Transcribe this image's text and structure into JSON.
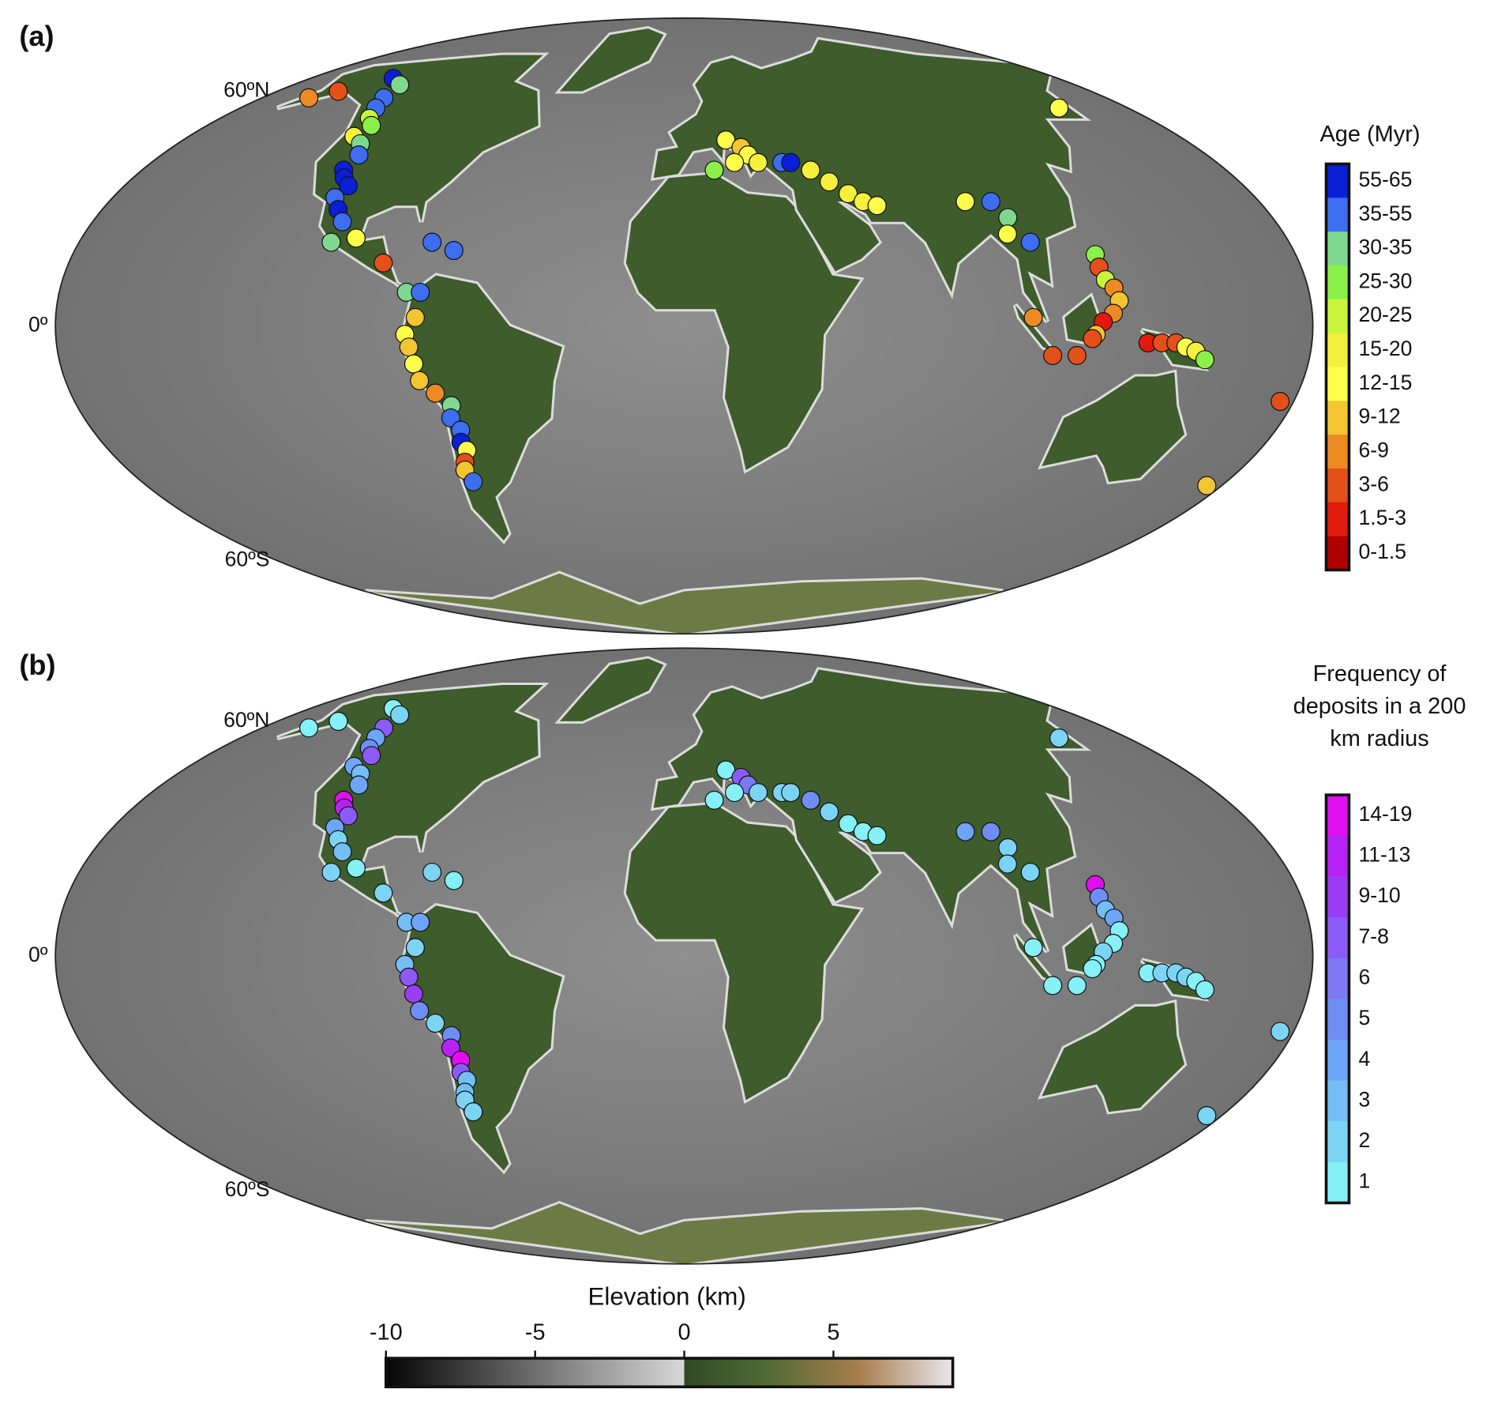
{
  "chart_data": [
    {
      "type": "map",
      "panel_label": "(a)",
      "lat_labels": [
        "60ºN",
        "0º",
        "60ºS"
      ],
      "legend_title": "Age (Myr)",
      "classes": [
        "55-65",
        "35-55",
        "30-35",
        "25-30",
        "20-25",
        "15-20",
        "12-15",
        "9-12",
        "6-9",
        "3-6",
        "1.5-3",
        "0-1.5"
      ],
      "class_colors": [
        "#0a1fd6",
        "#3d6ef0",
        "#7fd88f",
        "#8cf04a",
        "#c8f53a",
        "#f5f03a",
        "#ffff4a",
        "#f2c531",
        "#ee8a22",
        "#e4501a",
        "#e01a0c",
        "#b00000"
      ],
      "points": {
        "lon": [
          -160,
          -153,
          -140,
          -131,
          -128,
          -125,
          -122,
          -118,
          -120,
          -115,
          -112,
          -113,
          -111,
          -108,
          -110,
          -107,
          -104,
          -105,
          -98,
          -88,
          -75,
          -68,
          -80,
          -76,
          -77,
          -80,
          -79,
          -78,
          -77,
          -73,
          -69,
          -70,
          -68,
          -69,
          -68,
          -70,
          -71,
          -70,
          15,
          20,
          22,
          17,
          10,
          25,
          33,
          36,
          42,
          47,
          52,
          56,
          60,
          88,
          96,
          99,
          97,
          103,
          152,
          121,
          121,
          122,
          124,
          125,
          123,
          120,
          118,
          117,
          100,
          106,
          113,
          133,
          137,
          141,
          144,
          147,
          150,
          176,
          175
        ],
        "lat": [
          58,
          60,
          64,
          62,
          58,
          55,
          52,
          50,
          47,
          45,
          42,
          38,
          36,
          34,
          31,
          28,
          25,
          20,
          21,
          15,
          20,
          18,
          8,
          8,
          2,
          -2,
          -5,
          -9,
          -13,
          -16,
          -19,
          -22,
          -25,
          -28,
          -30,
          -33,
          -35,
          -38,
          46,
          44,
          42,
          40,
          38,
          40,
          40,
          40,
          38,
          35,
          32,
          30,
          29,
          30,
          30,
          26,
          22,
          20,
          55,
          17,
          14,
          11,
          9,
          6,
          3,
          1,
          -2,
          -3,
          2,
          -7,
          -7,
          -4,
          -4,
          -4,
          -5,
          -6,
          -8,
          -18,
          -39
        ],
        "class": [
          8,
          9,
          0,
          2,
          1,
          1,
          4,
          3,
          5,
          2,
          1,
          0,
          0,
          0,
          1,
          0,
          1,
          2,
          6,
          9,
          1,
          1,
          2,
          1,
          7,
          6,
          7,
          6,
          7,
          8,
          2,
          1,
          1,
          0,
          6,
          9,
          7,
          1,
          6,
          7,
          6,
          6,
          3,
          5,
          1,
          0,
          5,
          5,
          5,
          5,
          6,
          6,
          1,
          2,
          6,
          1,
          6,
          3,
          9,
          4,
          8,
          7,
          8,
          10,
          7,
          9,
          8,
          9,
          9,
          10,
          9,
          9,
          6,
          5,
          3,
          9,
          7
        ]
      }
    },
    {
      "type": "map",
      "panel_label": "(b)",
      "lat_labels": [
        "60ºN",
        "0º",
        "60ºS"
      ],
      "legend_title": [
        "Frequency of",
        "deposits in a 200",
        "km radius"
      ],
      "classes": [
        "14-19",
        "11-13",
        "9-10",
        "7-8",
        "6",
        "5",
        "4",
        "3",
        "2",
        "1"
      ],
      "class_colors": [
        "#e20ef0",
        "#b622f5",
        "#9b3cf5",
        "#8c5af5",
        "#7c78f2",
        "#6f8ef3",
        "#6ea5f7",
        "#74bdf5",
        "#7cd4f5",
        "#85f0f5"
      ],
      "points": {
        "lon": [
          -160,
          -153,
          -140,
          -131,
          -128,
          -125,
          -122,
          -118,
          -120,
          -115,
          -112,
          -113,
          -111,
          -108,
          -110,
          -107,
          -104,
          -105,
          -98,
          -88,
          -75,
          -68,
          -80,
          -76,
          -77,
          -80,
          -79,
          -78,
          -77,
          -73,
          -69,
          -70,
          -68,
          -69,
          -68,
          -70,
          -71,
          -70,
          15,
          20,
          22,
          17,
          10,
          25,
          33,
          36,
          42,
          47,
          52,
          56,
          60,
          88,
          96,
          99,
          97,
          103,
          152,
          121,
          121,
          122,
          124,
          125,
          123,
          120,
          118,
          117,
          100,
          106,
          113,
          133,
          137,
          141,
          144,
          147,
          150,
          176,
          175
        ],
        "lat": [
          58,
          60,
          64,
          62,
          58,
          55,
          52,
          50,
          47,
          45,
          42,
          38,
          36,
          34,
          31,
          28,
          25,
          20,
          21,
          15,
          20,
          18,
          8,
          8,
          2,
          -2,
          -5,
          -9,
          -13,
          -16,
          -19,
          -22,
          -25,
          -28,
          -30,
          -33,
          -35,
          -38,
          46,
          44,
          42,
          40,
          38,
          40,
          40,
          40,
          38,
          35,
          32,
          30,
          29,
          30,
          30,
          26,
          22,
          20,
          55,
          17,
          14,
          11,
          9,
          6,
          3,
          1,
          -2,
          -3,
          2,
          -7,
          -7,
          -4,
          -4,
          -4,
          -5,
          -6,
          -8,
          -18,
          -39
        ],
        "class": [
          9,
          9,
          9,
          8,
          3,
          6,
          5,
          3,
          6,
          7,
          6,
          0,
          1,
          3,
          6,
          8,
          7,
          8,
          9,
          8,
          8,
          9,
          7,
          6,
          8,
          7,
          3,
          2,
          5,
          8,
          5,
          1,
          0,
          3,
          7,
          7,
          8,
          8,
          9,
          3,
          4,
          9,
          9,
          8,
          8,
          8,
          5,
          8,
          9,
          9,
          9,
          6,
          5,
          8,
          8,
          8,
          8,
          0,
          5,
          7,
          6,
          9,
          9,
          8,
          9,
          9,
          9,
          9,
          9,
          9,
          8,
          8,
          8,
          9,
          9,
          8,
          8
        ]
      }
    },
    {
      "type": "colorbar",
      "title": "Elevation (km)",
      "xlim": [
        -10,
        9
      ],
      "xticks": [
        -10,
        -5,
        0,
        5
      ]
    }
  ]
}
